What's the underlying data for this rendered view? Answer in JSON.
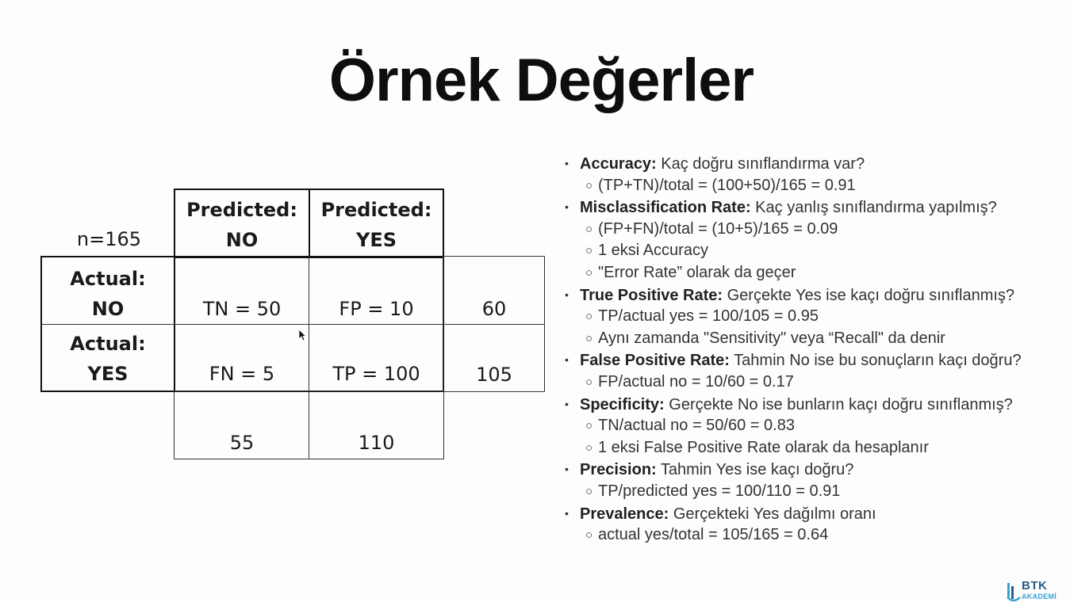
{
  "title": "Örnek Değerler",
  "matrix": {
    "n_label": "n=165",
    "pred_no": [
      "Predicted:",
      "NO"
    ],
    "pred_yes": [
      "Predicted:",
      "YES"
    ],
    "act_no": [
      "Actual:",
      "NO"
    ],
    "act_yes": [
      "Actual:",
      "YES"
    ],
    "tn": "TN = 50",
    "fp": "FP = 10",
    "fn": "FN = 5",
    "tp": "TP = 100",
    "row_no_total": "60",
    "row_yes_total": "105",
    "col_no_total": "55",
    "col_yes_total": "110"
  },
  "notes": [
    {
      "term": "Accuracy:",
      "text": " Kaç doğru sınıflandırma var?",
      "subs": [
        "(TP+TN)/total = (100+50)/165 = 0.91"
      ]
    },
    {
      "term": "Misclassification Rate:",
      "text": " Kaç yanlış sınıflandırma yapılmış?",
      "subs": [
        "(FP+FN)/total = (10+5)/165 = 0.09",
        "1 eksi Accuracy",
        "\"Error Rate” olarak da geçer"
      ]
    },
    {
      "term": "True Positive Rate:",
      "text": " Gerçekte Yes ise kaçı doğru sınıflanmış?",
      "subs": [
        "TP/actual yes = 100/105 = 0.95",
        "Aynı zamanda  \"Sensitivity\" veya “Recall\" da denir"
      ]
    },
    {
      "term": "False Positive Rate:",
      "text": " Tahmin No ise bu sonuçların kaçı doğru?",
      "subs": [
        "FP/actual no = 10/60 = 0.17"
      ]
    },
    {
      "term": "Specificity:",
      "text": " Gerçekte No ise bunların kaçı doğru sınıflanmış?",
      "subs": [
        "TN/actual no = 50/60 = 0.83",
        "1 eksi False Positive Rate olarak da hesaplanır"
      ]
    },
    {
      "term": "Precision:",
      "text": " Tahmin Yes ise kaçı doğru?",
      "subs": [
        "TP/predicted yes = 100/110 = 0.91"
      ]
    },
    {
      "term": "Prevalence:",
      "text": " Gerçekteki Yes dağılmı oranı",
      "subs": [
        "actual yes/total = 105/165 = 0.64"
      ]
    }
  ],
  "logo": {
    "top": "BTK",
    "bottom": "AKADEMİ"
  }
}
